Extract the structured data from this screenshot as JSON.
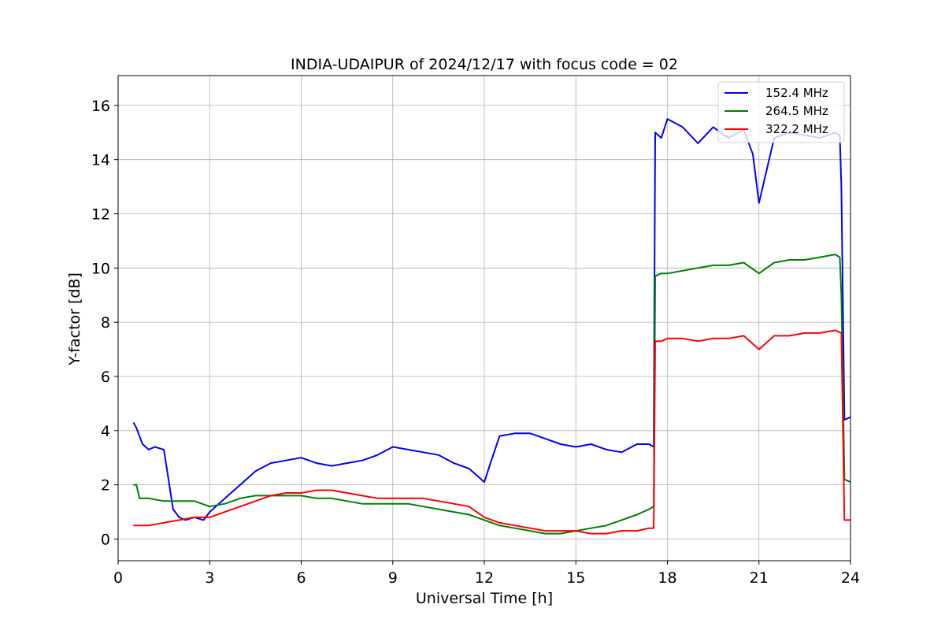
{
  "chart_data": {
    "type": "line",
    "title": "INDIA-UDAIPUR of 2024/12/17 with focus code = 02",
    "xlabel": "Universal Time [h]",
    "ylabel": "Y-factor [dB]",
    "xlim": [
      0,
      24
    ],
    "ylim": [
      -0.8,
      17.1
    ],
    "xticks": [
      "0",
      "3",
      "6",
      "9",
      "12",
      "15",
      "18",
      "21",
      "24"
    ],
    "yticks": [
      "0",
      "2",
      "4",
      "6",
      "8",
      "10",
      "12",
      "14",
      "16"
    ],
    "grid": true,
    "legend_position": "top-right",
    "series": [
      {
        "name": "152.4 MHz",
        "color": "#0000ff",
        "x": [
          0.5,
          0.6,
          0.7,
          0.8,
          1.0,
          1.2,
          1.5,
          1.8,
          2.0,
          2.2,
          2.5,
          2.8,
          3.0,
          3.3,
          3.6,
          4.0,
          4.5,
          5.0,
          5.5,
          6.0,
          6.5,
          7.0,
          7.5,
          8.0,
          8.5,
          9.0,
          9.5,
          10.0,
          10.5,
          11.0,
          11.5,
          11.8,
          12.0,
          12.2,
          12.5,
          13.0,
          13.5,
          14.0,
          14.5,
          15.0,
          15.5,
          16.0,
          16.5,
          17.0,
          17.4,
          17.55,
          17.6,
          17.8,
          18.0,
          18.5,
          19.0,
          19.5,
          20.0,
          20.5,
          20.8,
          21.0,
          21.5,
          22.0,
          22.5,
          23.0,
          23.5,
          23.65,
          23.7,
          23.8,
          24.0
        ],
        "values": [
          4.3,
          4.1,
          3.8,
          3.5,
          3.3,
          3.4,
          3.3,
          1.1,
          0.8,
          0.7,
          0.8,
          0.7,
          1.0,
          1.3,
          1.6,
          2.0,
          2.5,
          2.8,
          2.9,
          3.0,
          2.8,
          2.7,
          2.8,
          2.9,
          3.1,
          3.4,
          3.3,
          3.2,
          3.1,
          2.8,
          2.6,
          2.3,
          2.1,
          2.8,
          3.8,
          3.9,
          3.9,
          3.7,
          3.5,
          3.4,
          3.5,
          3.3,
          3.2,
          3.5,
          3.5,
          3.4,
          15.0,
          14.8,
          15.5,
          15.2,
          14.6,
          15.2,
          14.8,
          15.1,
          14.2,
          12.4,
          14.8,
          15.0,
          14.9,
          14.8,
          15.0,
          14.9,
          13.0,
          4.4,
          4.5
        ]
      },
      {
        "name": "264.5 MHz",
        "color": "#008000",
        "x": [
          0.5,
          0.6,
          0.7,
          1.0,
          1.5,
          2.0,
          2.5,
          3.0,
          3.5,
          4.0,
          4.5,
          5.0,
          5.5,
          6.0,
          6.5,
          7.0,
          7.5,
          8.0,
          8.5,
          9.0,
          9.5,
          10.0,
          10.5,
          11.0,
          11.5,
          12.0,
          12.5,
          13.0,
          13.5,
          14.0,
          14.5,
          15.0,
          15.5,
          16.0,
          16.5,
          17.0,
          17.4,
          17.55,
          17.6,
          17.8,
          18.0,
          18.5,
          19.0,
          19.5,
          20.0,
          20.5,
          21.0,
          21.5,
          22.0,
          22.5,
          23.0,
          23.5,
          23.65,
          23.7,
          23.8,
          24.0
        ],
        "values": [
          2.0,
          2.0,
          1.5,
          1.5,
          1.4,
          1.4,
          1.4,
          1.2,
          1.3,
          1.5,
          1.6,
          1.6,
          1.6,
          1.6,
          1.5,
          1.5,
          1.4,
          1.3,
          1.3,
          1.3,
          1.3,
          1.2,
          1.1,
          1.0,
          0.9,
          0.7,
          0.5,
          0.4,
          0.3,
          0.2,
          0.2,
          0.3,
          0.4,
          0.5,
          0.7,
          0.9,
          1.1,
          1.2,
          9.7,
          9.8,
          9.8,
          9.9,
          10.0,
          10.1,
          10.1,
          10.2,
          9.8,
          10.2,
          10.3,
          10.3,
          10.4,
          10.5,
          10.4,
          9.0,
          2.2,
          2.1
        ]
      },
      {
        "name": "322.2 MHz",
        "color": "#ff0000",
        "x": [
          0.5,
          0.7,
          1.0,
          1.5,
          2.0,
          2.5,
          3.0,
          3.5,
          4.0,
          4.5,
          5.0,
          5.5,
          6.0,
          6.5,
          7.0,
          7.5,
          8.0,
          8.5,
          9.0,
          9.5,
          10.0,
          10.5,
          11.0,
          11.5,
          12.0,
          12.5,
          13.0,
          13.5,
          14.0,
          14.5,
          15.0,
          15.5,
          16.0,
          16.5,
          17.0,
          17.4,
          17.55,
          17.6,
          17.8,
          18.0,
          18.5,
          19.0,
          19.5,
          20.0,
          20.5,
          21.0,
          21.5,
          22.0,
          22.5,
          23.0,
          23.5,
          23.7,
          23.8,
          24.0
        ],
        "values": [
          0.5,
          0.5,
          0.5,
          0.6,
          0.7,
          0.8,
          0.8,
          1.0,
          1.2,
          1.4,
          1.6,
          1.7,
          1.7,
          1.8,
          1.8,
          1.7,
          1.6,
          1.5,
          1.5,
          1.5,
          1.5,
          1.4,
          1.3,
          1.2,
          0.8,
          0.6,
          0.5,
          0.4,
          0.3,
          0.3,
          0.3,
          0.2,
          0.2,
          0.3,
          0.3,
          0.4,
          0.4,
          7.3,
          7.3,
          7.4,
          7.4,
          7.3,
          7.4,
          7.4,
          7.5,
          7.0,
          7.5,
          7.5,
          7.6,
          7.6,
          7.7,
          7.6,
          0.7,
          0.7
        ]
      }
    ]
  }
}
